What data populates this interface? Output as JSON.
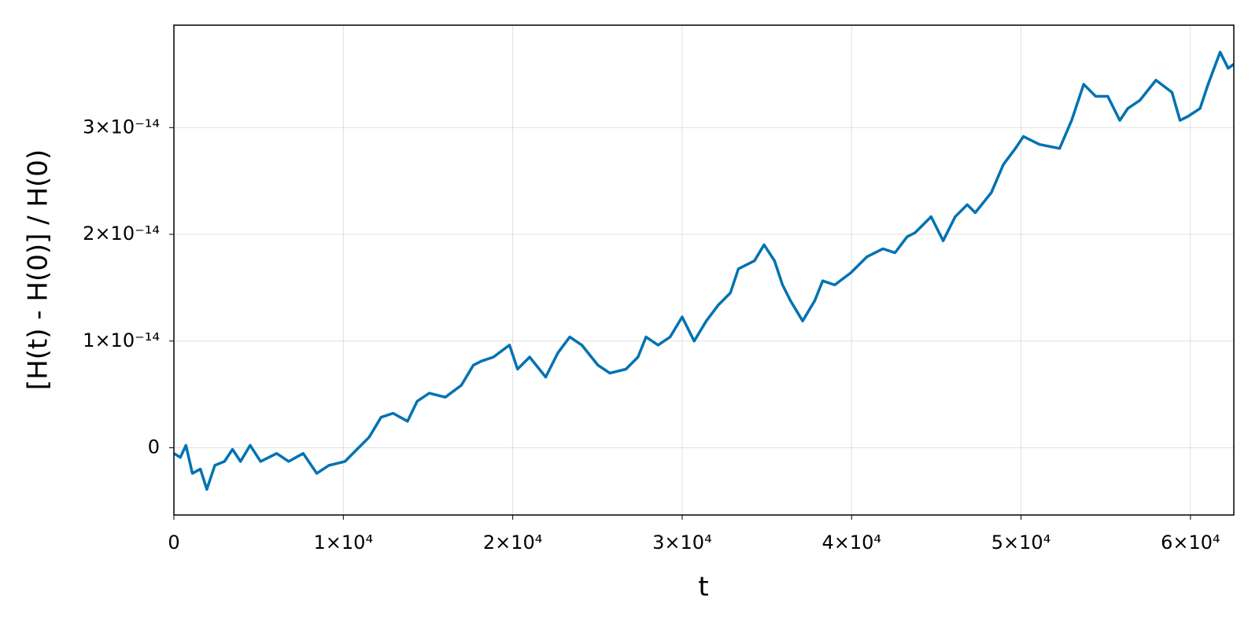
{
  "chart_data": {
    "type": "line",
    "x_label": "t",
    "y_label": "[H(t) - H(0)] / H(0)",
    "xlim": [
      0,
      62560
    ],
    "ylim": [
      -6.3e-15,
      3.96e-14
    ],
    "xticks": [
      0,
      {
        "value": 10000,
        "label": "1×10⁴"
      },
      {
        "value": 20000,
        "label": "2×10⁴"
      },
      {
        "value": 30000,
        "label": "3×10⁴"
      },
      {
        "value": 40000,
        "label": "4×10⁴"
      },
      {
        "value": 50000,
        "label": "5×10⁴"
      },
      {
        "value": 60000,
        "label": "6×10⁴"
      }
    ],
    "yticks": [
      0,
      {
        "value": 1e-14,
        "label": "1×10⁻¹⁴"
      },
      {
        "value": 2e-14,
        "label": "2×10⁻¹⁴"
      },
      {
        "value": 3e-14,
        "label": "3×10⁻¹⁴"
      }
    ],
    "grid": true,
    "x": [
      0,
      379,
      711,
      1090,
      1564,
      1943,
      2417,
      2986,
      3460,
      3934,
      4502,
      5118,
      6066,
      6777,
      7630,
      8436,
      9147,
      10095,
      10806,
      11517,
      12227,
      12938,
      13791,
      14360,
      15071,
      16019,
      16967,
      17678,
      18152,
      18863,
      19810,
      20284,
      20995,
      21943,
      22654,
      23365,
      24076,
      25024,
      25735,
      26682,
      27393,
      27867,
      28578,
      29289,
      30000,
      30711,
      31422,
      32133,
      32844,
      33318,
      34265,
      34834,
      35450,
      35924,
      36398,
      37109,
      37820,
      38294,
      39005,
      39953,
      40900,
      41848,
      42559,
      43270,
      43744,
      44692,
      45403,
      46114,
      46825,
      47299,
      48246,
      48957,
      49668,
      50142,
      51090,
      52275,
      52986,
      53697,
      54408,
      55118,
      55829,
      56303,
      57014,
      57962,
      58910,
      59384,
      59858,
      60569,
      61043,
      61754,
      62227,
      62559
    ],
    "series": [
      {
        "color": "#0072b2",
        "values": [
          -5.3e-16,
          -9e-16,
          2.3e-16,
          -2.4e-15,
          -2e-15,
          -3.9e-15,
          -1.65e-15,
          -1.28e-15,
          -1.5e-16,
          -1.28e-15,
          2.3e-16,
          -1.28e-15,
          -5.3e-16,
          -1.28e-15,
          -5.3e-16,
          -2.4e-15,
          -1.65e-15,
          -1.28e-15,
          -1.5e-16,
          9.8e-16,
          2.86e-15,
          3.23e-15,
          2.48e-15,
          4.36e-15,
          5.11e-15,
          4.74e-15,
          5.86e-15,
          7.74e-15,
          8.12e-15,
          8.5e-15,
          9.62e-15,
          7.37e-15,
          8.5e-15,
          6.62e-15,
          8.87e-15,
          1.038e-14,
          9.62e-15,
          7.74e-15,
          6.99e-15,
          7.37e-15,
          8.5e-15,
          1.038e-14,
          9.62e-15,
          1.038e-14,
          1.226e-14,
          1e-14,
          1.188e-14,
          1.338e-14,
          1.451e-14,
          1.677e-14,
          1.752e-14,
          1.902e-14,
          1.752e-14,
          1.526e-14,
          1.376e-14,
          1.188e-14,
          1.376e-14,
          1.564e-14,
          1.526e-14,
          1.639e-14,
          1.789e-14,
          1.865e-14,
          1.827e-14,
          1.977e-14,
          2.015e-14,
          2.165e-14,
          1.94e-14,
          2.165e-14,
          2.278e-14,
          2.203e-14,
          2.391e-14,
          2.654e-14,
          2.805e-14,
          2.917e-14,
          2.842e-14,
          2.805e-14,
          3.068e-14,
          3.406e-14,
          3.293e-14,
          3.293e-14,
          3.068e-14,
          3.18e-14,
          3.256e-14,
          3.444e-14,
          3.331e-14,
          3.068e-14,
          3.105e-14,
          3.18e-14,
          3.406e-14,
          3.707e-14,
          3.556e-14,
          3.594e-14
        ]
      }
    ]
  }
}
